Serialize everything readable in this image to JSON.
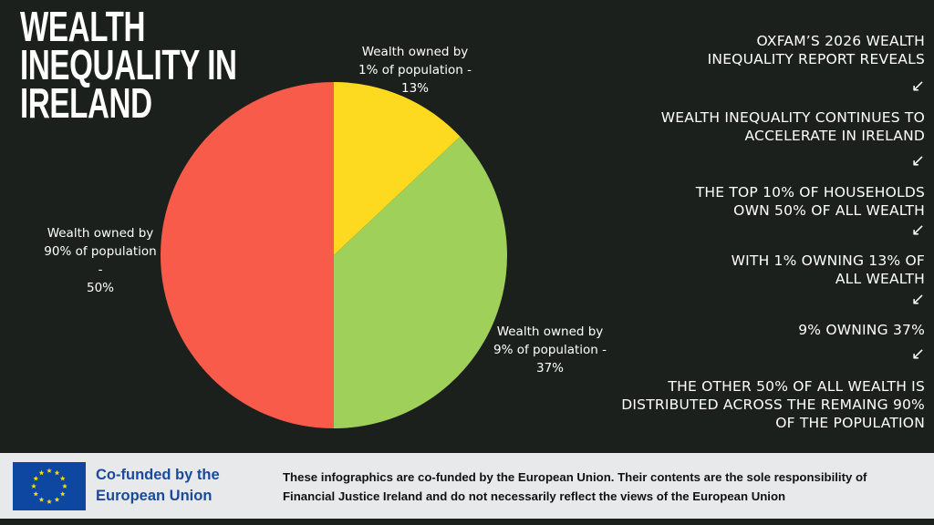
{
  "chart_data": {
    "type": "pie",
    "title": "WEALTH INEQUALITY IN IRELAND",
    "categories": [
      "Wealth owned by 1% of population -",
      "Wealth owned by 9% of population -",
      "Wealth owned by 90% of population -"
    ],
    "values": [
      13,
      37,
      50
    ],
    "value_labels": [
      "13%",
      "37%",
      "50%"
    ],
    "colors": [
      "#fdd91f",
      "#9fd05a",
      "#f95b4a"
    ]
  },
  "statements": [
    "OXFAM’S 2026 WEALTH INEQUALITY REPORT REVEALS",
    "WEALTH INEQUALITY CONTINUES TO ACCELERATE IN IRELAND",
    "THE TOP 10% OF HOUSEHOLDS OWN 50% OF ALL WEALTH",
    "WITH 1% OWNING 13%  OF ALL WEALTH",
    "9% OWNING 37%",
    "THE OTHER 50% OF ALL WEALTH IS DISTRIBUTED ACROSS THE REMAING 90% OF THE POPULATION"
  ],
  "footer": {
    "funder": "Co-funded by the European Union",
    "disclaimer": "These infographics are co-funded by the European Union. Their contents are the sole responsibility of Financial Justice Ireland and do not necessarily reflect the views of the European Union"
  }
}
